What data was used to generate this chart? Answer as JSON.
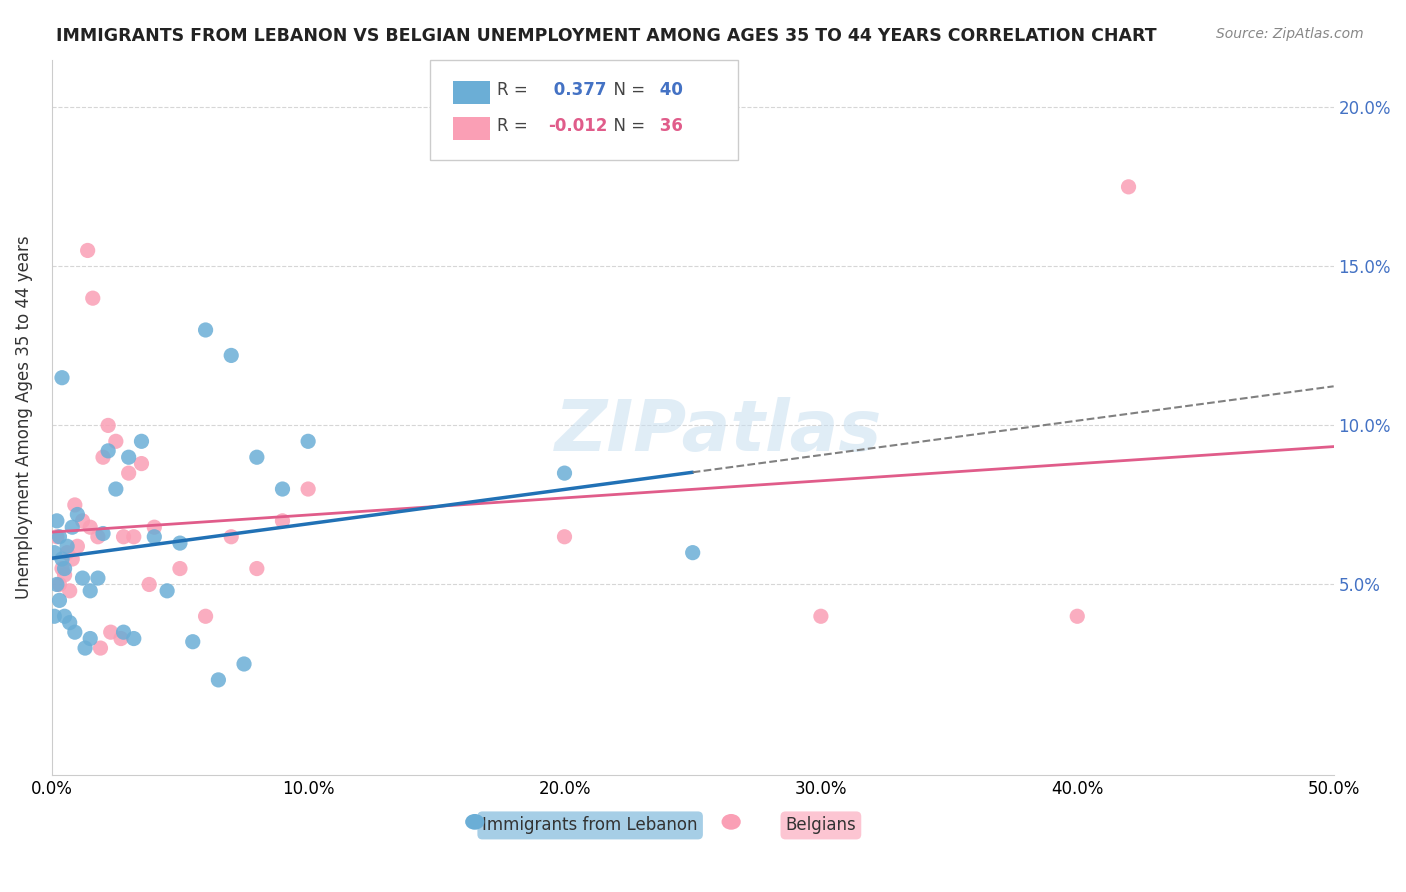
{
  "title": "IMMIGRANTS FROM LEBANON VS BELGIAN UNEMPLOYMENT AMONG AGES 35 TO 44 YEARS CORRELATION CHART",
  "source": "Source: ZipAtlas.com",
  "xlabel": "",
  "ylabel": "Unemployment Among Ages 35 to 44 years",
  "xlim": [
    0.0,
    0.5
  ],
  "ylim": [
    -0.01,
    0.215
  ],
  "xticks": [
    0.0,
    0.1,
    0.2,
    0.3,
    0.4,
    0.5
  ],
  "xtick_labels": [
    "0.0%",
    "10.0%",
    "20.0%",
    "30.0%",
    "40.0%",
    "50.0%"
  ],
  "yticks": [
    0.05,
    0.1,
    0.15,
    0.2
  ],
  "ytick_labels": [
    "5.0%",
    "10.0%",
    "15.0%",
    "20.0%"
  ],
  "blue_color": "#6baed6",
  "pink_color": "#fa9fb5",
  "blue_line_color": "#2171b5",
  "pink_line_color": "#e05c8a",
  "legend_R_blue": "0.377",
  "legend_N_blue": "40",
  "legend_R_pink": "-0.012",
  "legend_N_pink": "36",
  "legend_label_blue": "Immigrants from Lebanon",
  "legend_label_pink": "Belgians",
  "watermark": "ZIPatlas",
  "blue_x": [
    0.005,
    0.003,
    0.002,
    0.001,
    0.002,
    0.004,
    0.006,
    0.008,
    0.003,
    0.001,
    0.012,
    0.015,
    0.01,
    0.02,
    0.025,
    0.03,
    0.018,
    0.022,
    0.035,
    0.04,
    0.045,
    0.05,
    0.06,
    0.07,
    0.08,
    0.09,
    0.1,
    0.005,
    0.007,
    0.009,
    0.015,
    0.013,
    0.028,
    0.032,
    0.055,
    0.065,
    0.075,
    0.2,
    0.25,
    0.004
  ],
  "blue_y": [
    0.055,
    0.065,
    0.07,
    0.06,
    0.05,
    0.058,
    0.062,
    0.068,
    0.045,
    0.04,
    0.052,
    0.048,
    0.072,
    0.066,
    0.08,
    0.09,
    0.052,
    0.092,
    0.095,
    0.065,
    0.048,
    0.063,
    0.13,
    0.122,
    0.09,
    0.08,
    0.095,
    0.04,
    0.038,
    0.035,
    0.033,
    0.03,
    0.035,
    0.033,
    0.032,
    0.02,
    0.025,
    0.085,
    0.06,
    0.115
  ],
  "pink_x": [
    0.002,
    0.004,
    0.006,
    0.008,
    0.01,
    0.003,
    0.005,
    0.007,
    0.009,
    0.012,
    0.015,
    0.02,
    0.025,
    0.03,
    0.035,
    0.04,
    0.018,
    0.022,
    0.028,
    0.032,
    0.05,
    0.06,
    0.07,
    0.08,
    0.09,
    0.1,
    0.2,
    0.3,
    0.4,
    0.42,
    0.014,
    0.016,
    0.019,
    0.023,
    0.027,
    0.038
  ],
  "pink_y": [
    0.065,
    0.055,
    0.06,
    0.058,
    0.062,
    0.05,
    0.053,
    0.048,
    0.075,
    0.07,
    0.068,
    0.09,
    0.095,
    0.085,
    0.088,
    0.068,
    0.065,
    0.1,
    0.065,
    0.065,
    0.055,
    0.04,
    0.065,
    0.055,
    0.07,
    0.08,
    0.065,
    0.04,
    0.04,
    0.175,
    0.155,
    0.14,
    0.03,
    0.035,
    0.033,
    0.05
  ],
  "blue_trend_x": [
    0.0,
    0.5
  ],
  "blue_R": 0.377,
  "pink_R": -0.012
}
